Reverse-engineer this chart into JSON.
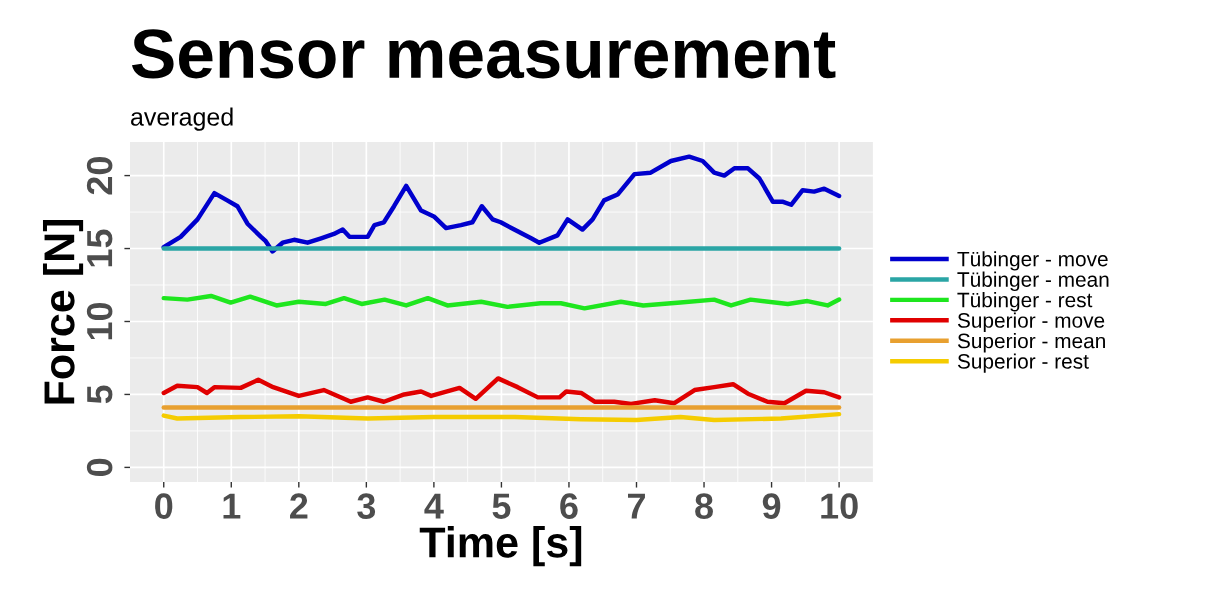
{
  "chart_data": {
    "type": "line",
    "title": "Sensor measurement",
    "subtitle": "averaged",
    "xlabel": "Time [s]",
    "ylabel": "Force [N]",
    "xlim": [
      -0.5,
      10.5
    ],
    "ylim": [
      -1,
      22.3
    ],
    "xticks": [
      0,
      1,
      2,
      3,
      4,
      5,
      6,
      7,
      8,
      9,
      10
    ],
    "yticks": [
      0,
      5,
      10,
      15,
      20
    ],
    "grid": true,
    "legend": "right",
    "series": [
      {
        "name": "Tübinger - move",
        "color": "#0000cd",
        "x": [
          0,
          0.25,
          0.5,
          0.75,
          0.94,
          1.09,
          1.24,
          1.44,
          1.51,
          1.61,
          1.76,
          1.93,
          2.13,
          2.33,
          2.52,
          2.65,
          2.75,
          3.02,
          3.12,
          3.26,
          3.41,
          3.59,
          3.81,
          4.0,
          4.18,
          4.4,
          4.57,
          4.71,
          4.87,
          4.99,
          5.19,
          5.44,
          5.56,
          5.83,
          5.98,
          6.2,
          6.35,
          6.52,
          6.72,
          6.97,
          7.21,
          7.51,
          7.78,
          7.98,
          8.15,
          8.3,
          8.45,
          8.65,
          8.82,
          9.02,
          9.17,
          9.29,
          9.46,
          9.63,
          9.78,
          10.0
        ],
        "values": [
          15.1,
          15.8,
          17.0,
          18.8,
          18.3,
          17.9,
          16.7,
          15.8,
          15.5,
          14.8,
          15.4,
          15.6,
          15.4,
          15.7,
          16.0,
          16.3,
          15.8,
          15.8,
          16.6,
          16.8,
          17.9,
          19.3,
          17.6,
          17.2,
          16.4,
          16.6,
          16.8,
          17.9,
          17.0,
          16.8,
          16.3,
          15.7,
          15.4,
          15.9,
          17.0,
          16.3,
          17.0,
          18.3,
          18.7,
          20.1,
          20.2,
          21.0,
          21.3,
          21.0,
          20.2,
          20.0,
          20.5,
          20.5,
          19.8,
          18.2,
          18.2,
          18.0,
          19.0,
          18.9,
          19.1,
          18.6
        ]
      },
      {
        "name": "Tübinger - mean",
        "color": "#2aa5a5",
        "x": [
          0,
          10
        ],
        "values": [
          15.0,
          15.0
        ]
      },
      {
        "name": "Tübinger - rest",
        "color": "#1ee61e",
        "x": [
          0,
          0.35,
          0.7,
          0.99,
          1.28,
          1.67,
          2.0,
          2.4,
          2.67,
          2.93,
          3.27,
          3.59,
          3.91,
          4.2,
          4.7,
          5.09,
          5.58,
          5.88,
          6.23,
          6.77,
          7.1,
          7.65,
          8.15,
          8.4,
          8.69,
          9.24,
          9.53,
          9.83,
          10.0
        ],
        "values": [
          11.6,
          11.5,
          11.75,
          11.3,
          11.7,
          11.1,
          11.35,
          11.2,
          11.6,
          11.2,
          11.5,
          11.1,
          11.6,
          11.1,
          11.35,
          11.0,
          11.25,
          11.25,
          10.9,
          11.35,
          11.1,
          11.3,
          11.5,
          11.1,
          11.5,
          11.2,
          11.4,
          11.1,
          11.5
        ]
      },
      {
        "name": "Superior - move",
        "color": "#e00000",
        "x": [
          0,
          0.2,
          0.5,
          0.64,
          0.75,
          1.14,
          1.4,
          1.62,
          2.0,
          2.37,
          2.77,
          3.02,
          3.26,
          3.56,
          3.81,
          3.96,
          4.38,
          4.62,
          4.95,
          5.24,
          5.54,
          5.86,
          5.96,
          6.18,
          6.38,
          6.67,
          6.92,
          7.27,
          7.56,
          7.86,
          8.15,
          8.43,
          8.65,
          8.94,
          9.19,
          9.51,
          9.78,
          10.0
        ],
        "values": [
          5.1,
          5.6,
          5.5,
          5.1,
          5.5,
          5.45,
          6.0,
          5.5,
          4.9,
          5.3,
          4.5,
          4.8,
          4.5,
          5.0,
          5.2,
          4.9,
          5.45,
          4.7,
          6.1,
          5.5,
          4.8,
          4.8,
          5.2,
          5.1,
          4.5,
          4.5,
          4.35,
          4.6,
          4.4,
          5.3,
          5.5,
          5.7,
          5.05,
          4.5,
          4.4,
          5.25,
          5.15,
          4.8
        ]
      },
      {
        "name": "Superior - mean",
        "color": "#e8a030",
        "x": [
          0,
          10
        ],
        "values": [
          4.1,
          4.1
        ]
      },
      {
        "name": "Superior - rest",
        "color": "#f5cc00",
        "x": [
          0,
          0.2,
          1.13,
          2.0,
          3.02,
          4.0,
          5.2,
          6.18,
          7.0,
          7.65,
          8.15,
          9.14,
          10.0
        ],
        "values": [
          3.55,
          3.35,
          3.45,
          3.5,
          3.35,
          3.45,
          3.45,
          3.3,
          3.25,
          3.45,
          3.25,
          3.35,
          3.65
        ]
      }
    ]
  }
}
